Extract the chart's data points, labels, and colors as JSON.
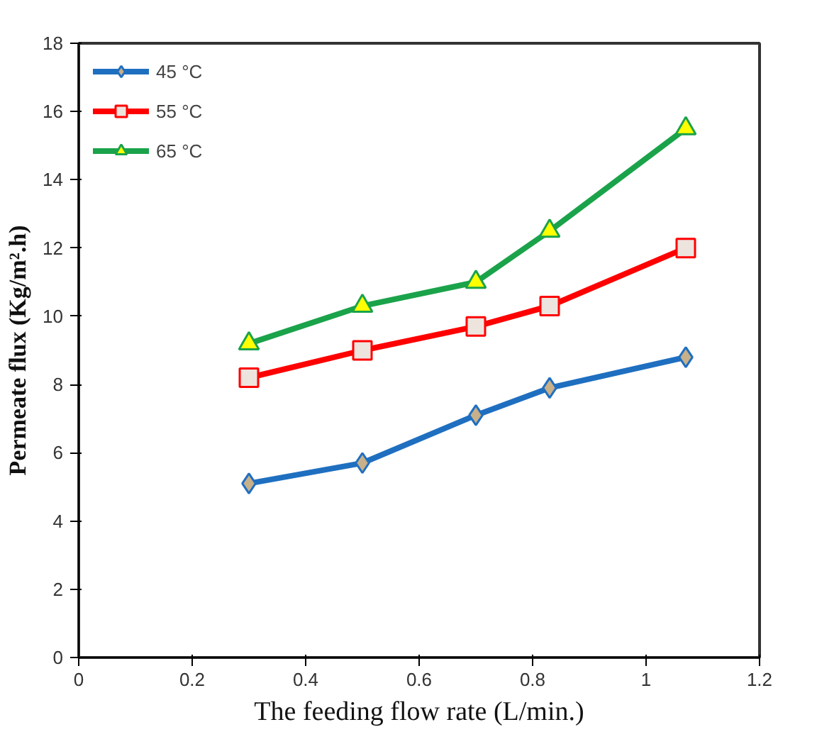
{
  "chart_data": {
    "type": "line",
    "xlabel": "The feeding flow rate (L/min.)",
    "ylabel": "Permeate flux (Kg/m².h)",
    "x": [
      0.3,
      0.5,
      0.7,
      0.83,
      1.07
    ],
    "series": [
      {
        "name": "45 °C",
        "color": "#1f6fc0",
        "marker": "diamond",
        "values": [
          5.1,
          5.7,
          7.1,
          7.9,
          8.8
        ]
      },
      {
        "name": "55 °C",
        "color": "#ff0000",
        "marker": "square",
        "values": [
          8.2,
          9.0,
          9.7,
          10.3,
          12.0
        ]
      },
      {
        "name": "65 °C",
        "color": "#1aa34a",
        "marker": "triangle",
        "values": [
          9.2,
          10.3,
          11.0,
          12.5,
          15.5
        ]
      }
    ],
    "xlim": [
      0,
      1.2
    ],
    "xticks": [
      0,
      0.2,
      0.4,
      0.6,
      0.8,
      1,
      1.2
    ],
    "ylim": [
      0,
      18
    ],
    "yticks": [
      0,
      2,
      4,
      6,
      8,
      10,
      12,
      14,
      16,
      18
    ],
    "grid": false,
    "legend": "top left",
    "line_style": "solid"
  }
}
